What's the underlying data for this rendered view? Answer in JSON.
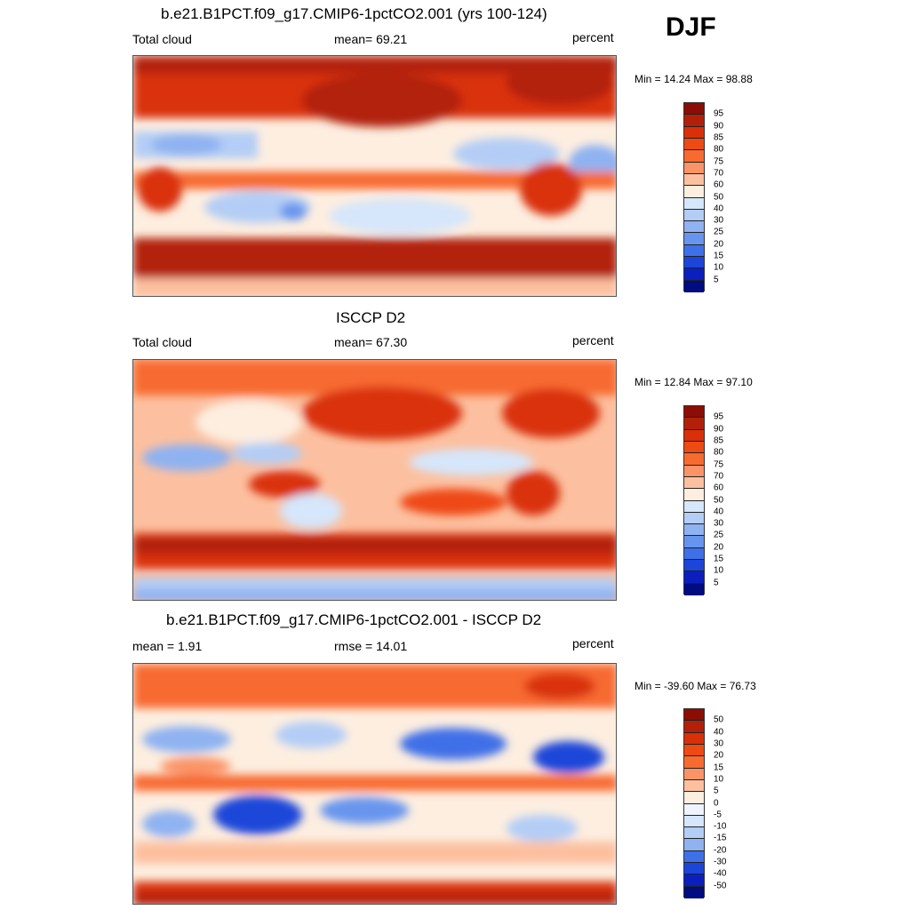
{
  "season": "DJF",
  "panels": [
    {
      "title": "b.e21.B1PCT.f09_g17.CMIP6-1pctCO2.001 (yrs 100-124)",
      "left_label": "Total cloud",
      "center_label": "mean=  69.21",
      "right_label": "percent",
      "minmax": "Min =  14.24 Max =  98.88",
      "legend_labels": [
        "95",
        "90",
        "85",
        "80",
        "75",
        "70",
        "60",
        "50",
        "40",
        "30",
        "25",
        "20",
        "15",
        "10",
        "5"
      ],
      "legend_colors": [
        "#8b0d05",
        "#b2200a",
        "#d9300a",
        "#ee4a14",
        "#f76b30",
        "#fa9468",
        "#fcc0a0",
        "#fdeee0",
        "#d6e6fb",
        "#b3cdf6",
        "#8fb2f1",
        "#6795ee",
        "#3f70e8",
        "#1b46d9",
        "#0b1fbf",
        "#000c80"
      ]
    },
    {
      "title": "ISCCP D2",
      "left_label": "Total cloud",
      "center_label": "mean=  67.30",
      "right_label": "percent",
      "minmax": "Min =  12.84 Max =  97.10",
      "legend_labels": [
        "95",
        "90",
        "85",
        "80",
        "75",
        "70",
        "60",
        "50",
        "40",
        "30",
        "25",
        "20",
        "15",
        "10",
        "5"
      ],
      "legend_colors": [
        "#8b0d05",
        "#b2200a",
        "#d9300a",
        "#ee4a14",
        "#f76b30",
        "#fa9468",
        "#fcc0a0",
        "#fdeee0",
        "#d6e6fb",
        "#b3cdf6",
        "#8fb2f1",
        "#6795ee",
        "#3f70e8",
        "#1b46d9",
        "#0b1fbf",
        "#000c80"
      ]
    },
    {
      "title": "b.e21.B1PCT.f09_g17.CMIP6-1pctCO2.001 - ISCCP D2",
      "left_label": "mean =   1.91",
      "center_label": "rmse =  14.01",
      "right_label": "percent",
      "minmax": "Min = -39.60 Max =  76.73",
      "legend_labels": [
        "50",
        "40",
        "30",
        "20",
        "15",
        "10",
        "5",
        "0",
        "-5",
        "-10",
        "-15",
        "-20",
        "-30",
        "-40",
        "-50"
      ],
      "legend_colors": [
        "#8b0d05",
        "#b2200a",
        "#d9300a",
        "#ee4a14",
        "#f76b30",
        "#fa9468",
        "#fcc0a0",
        "#fdeee0",
        "#eef3fd",
        "#d6e6fb",
        "#b3cdf6",
        "#8fb2f1",
        "#3f70e8",
        "#1b46d9",
        "#0b1fbf",
        "#000c80"
      ]
    }
  ]
}
